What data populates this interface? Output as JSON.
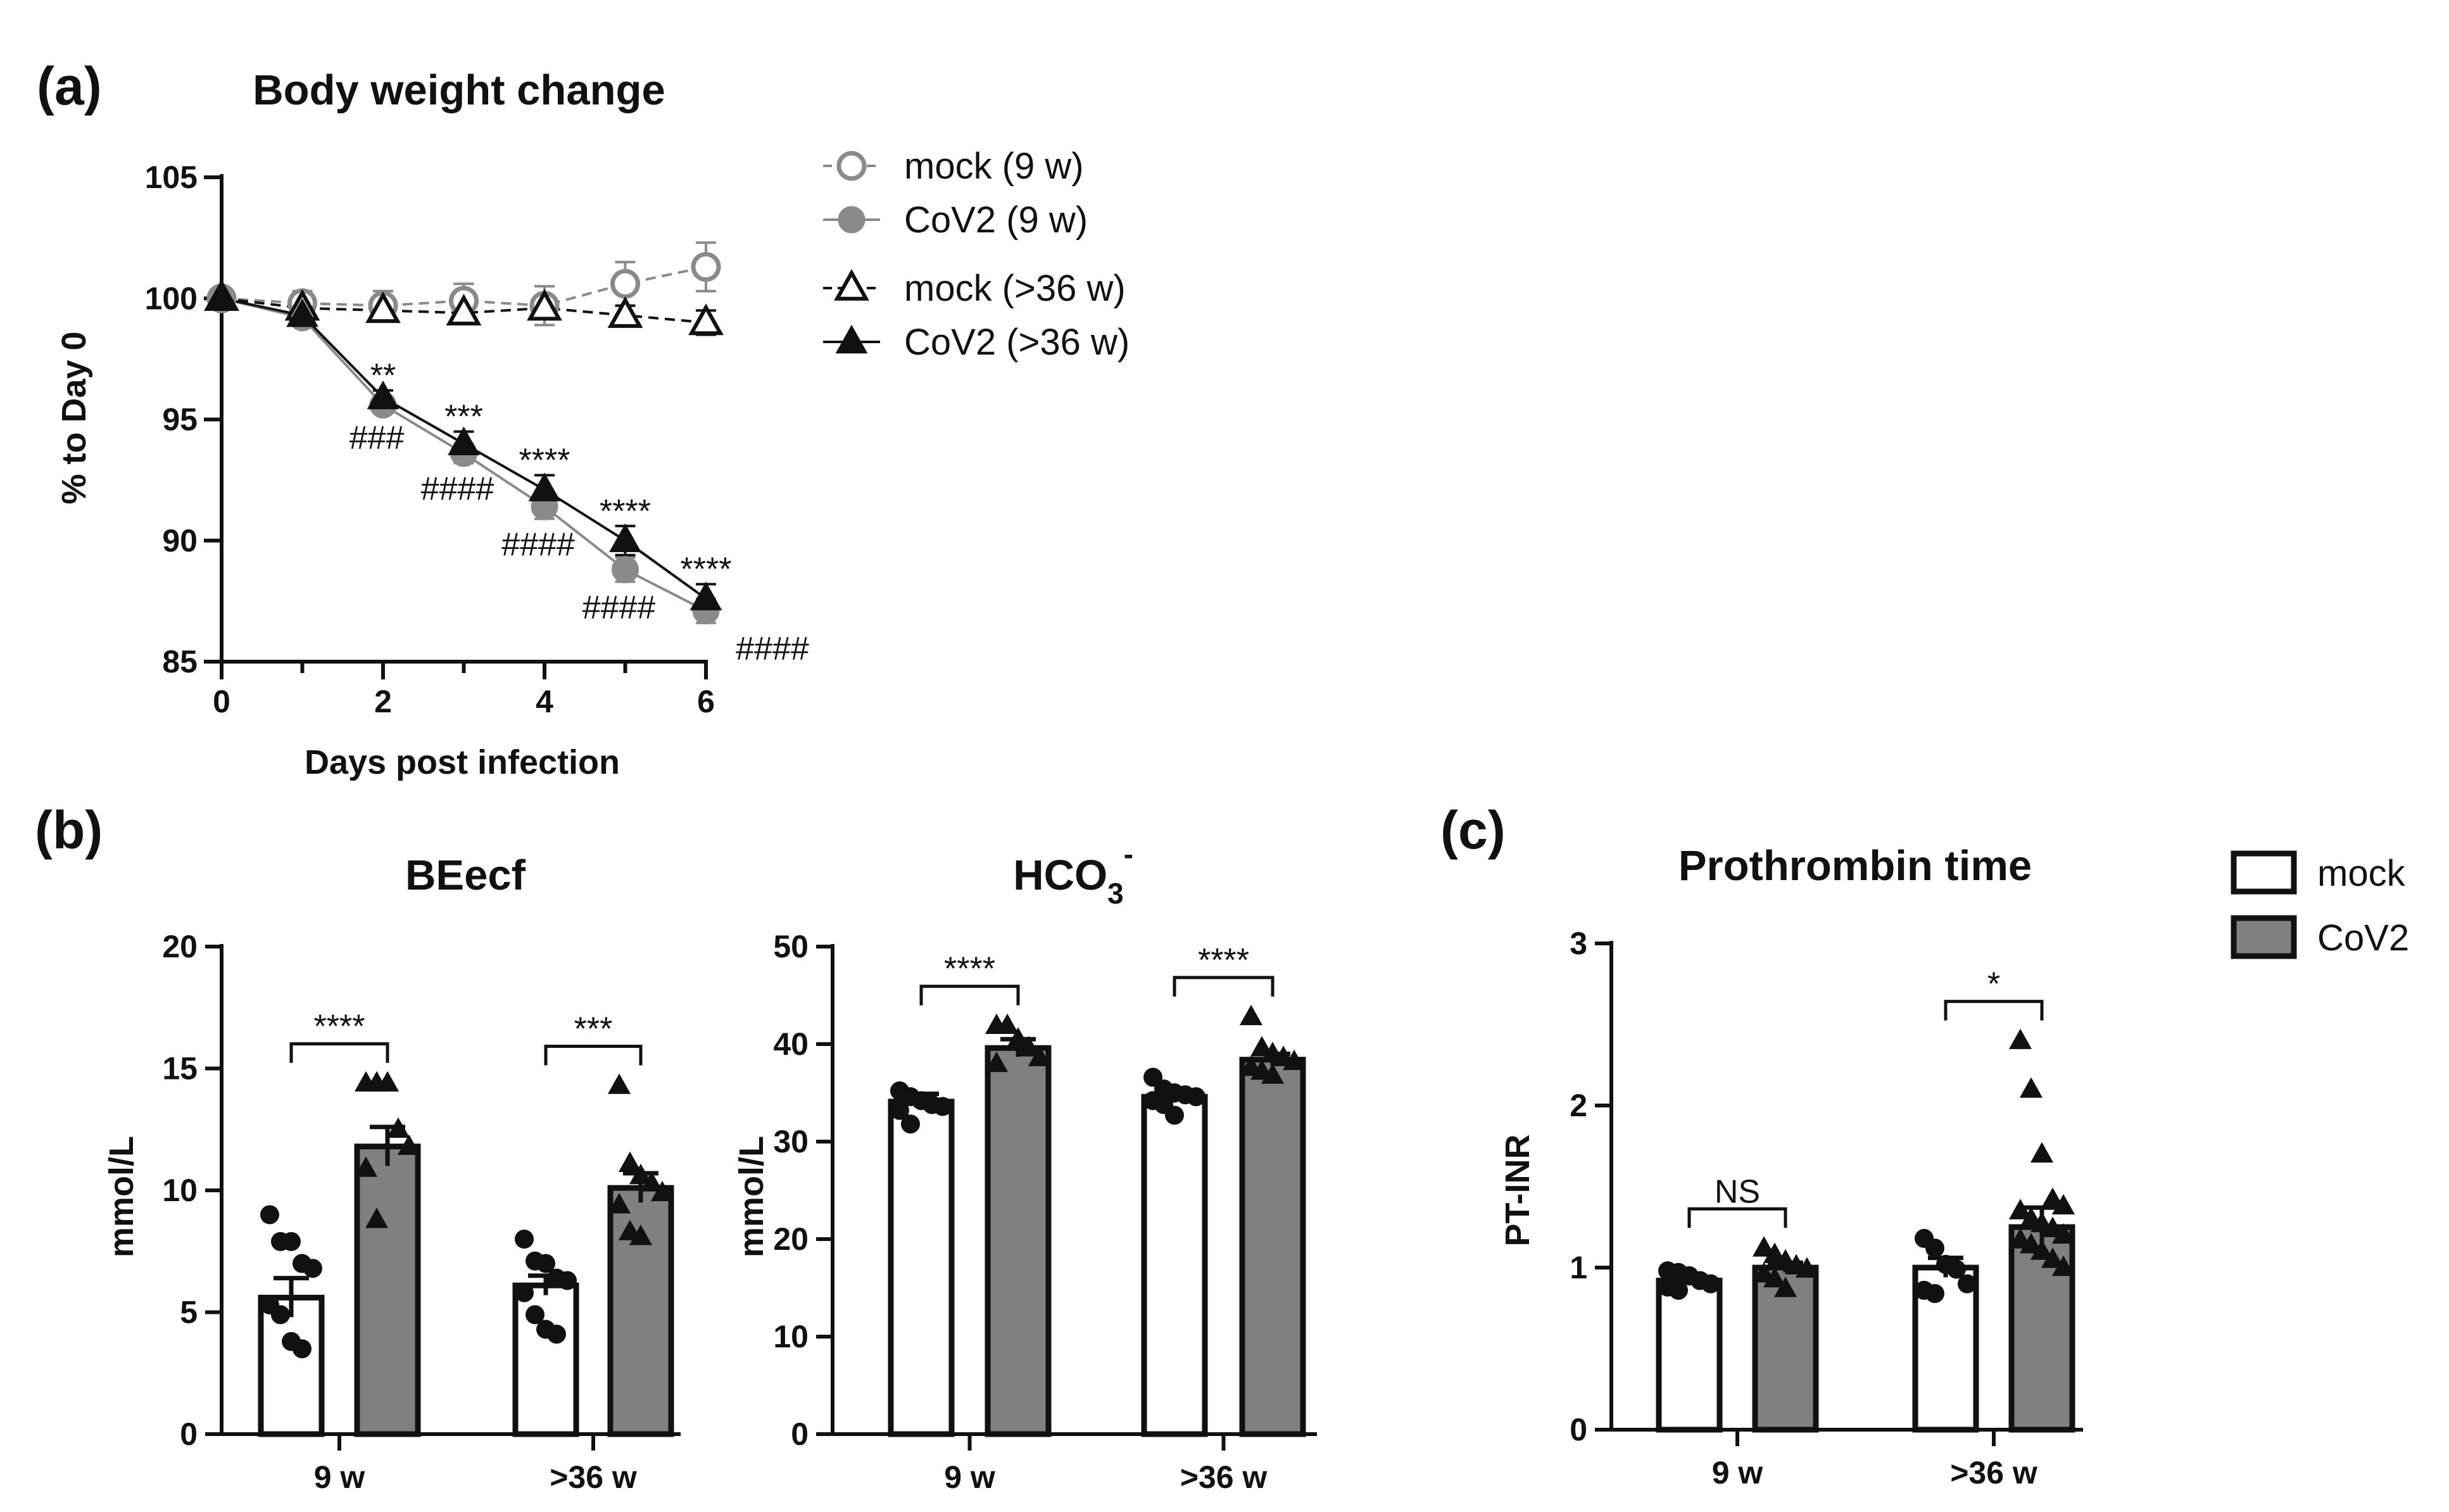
{
  "chart_data": [
    {
      "panel": "(a)",
      "type": "line",
      "title": "Body weight change",
      "xlabel": "Days post infection",
      "ylabel": "% to Day 0",
      "xlim": [
        0,
        6
      ],
      "ylim": [
        85,
        105
      ],
      "xticks": [
        0,
        2,
        4,
        6
      ],
      "yticks": [
        85,
        90,
        95,
        100,
        105
      ],
      "x": [
        0,
        1,
        2,
        3,
        4,
        5,
        6
      ],
      "series": [
        {
          "name": "mock (9 w)",
          "marker": "circle-open",
          "color": "#8a8a8a",
          "dashed": true,
          "values": [
            100,
            99.8,
            99.7,
            99.9,
            99.7,
            100.6,
            101.3
          ],
          "err": [
            0.2,
            0.5,
            0.6,
            0.7,
            0.8,
            0.9,
            1.0
          ]
        },
        {
          "name": "CoV2 (9 w)",
          "marker": "circle-filled",
          "color": "#8a8a8a",
          "dashed": false,
          "values": [
            100,
            99.2,
            95.6,
            93.6,
            91.4,
            88.8,
            87.1
          ],
          "err": [
            0.2,
            0.3,
            0.3,
            0.4,
            0.5,
            0.5,
            0.5
          ]
        },
        {
          "name": "mock (>36 w)",
          "marker": "triangle-open",
          "color": "#111111",
          "dashed": true,
          "values": [
            100,
            99.6,
            99.5,
            99.4,
            99.6,
            99.3,
            99.0
          ],
          "err": [
            0.2,
            0.3,
            0.3,
            0.3,
            0.3,
            0.4,
            0.5
          ]
        },
        {
          "name": "CoV2 (>36 w)",
          "marker": "triangle-filled",
          "color": "#111111",
          "dashed": false,
          "values": [
            100,
            99.3,
            95.9,
            94.0,
            92.1,
            90.0,
            87.6
          ],
          "err": [
            0.2,
            0.3,
            0.3,
            0.5,
            0.6,
            0.6,
            0.6
          ]
        }
      ],
      "annotations": [
        {
          "x": 2,
          "upper": "**",
          "lower": "###"
        },
        {
          "x": 3,
          "upper": "***",
          "lower": "####"
        },
        {
          "x": 4,
          "upper": "****",
          "lower": "####"
        },
        {
          "x": 5,
          "upper": "****",
          "lower": "####"
        },
        {
          "x": 6,
          "upper": "****",
          "lower": "####"
        }
      ]
    },
    {
      "panel": "(b)",
      "type": "bar",
      "title": "BEecf",
      "ylabel": "mmol/L",
      "categories": [
        "9 w",
        ">36 w"
      ],
      "ylim": [
        0,
        20
      ],
      "yticks": [
        0,
        5,
        10,
        15,
        20
      ],
      "series": [
        {
          "name": "mock",
          "values": [
            5.6,
            6.1
          ],
          "err": [
            0.8,
            0.4
          ],
          "points": [
            [
              9.0,
              7.9,
              7.9,
              7.0,
              6.8,
              5.3,
              4.9,
              3.8,
              3.5
            ],
            [
              8.0,
              7.1,
              7.0,
              6.4,
              6.3,
              5.8,
              4.9,
              4.3,
              4.1
            ]
          ]
        },
        {
          "name": "CoV2",
          "values": [
            11.8,
            10.1
          ],
          "err": [
            0.8,
            0.6
          ],
          "points": [
            [
              14.4,
              14.4,
              14.4,
              12.5,
              11.8,
              10.9,
              8.8
            ],
            [
              14.3,
              11.1,
              10.6,
              10.3,
              9.9,
              9.4,
              8.3,
              8.1
            ]
          ]
        }
      ],
      "significance": [
        "****",
        "***"
      ]
    },
    {
      "type": "bar",
      "title": "HCO3-",
      "title_main": "HCO",
      "title_sub": "3",
      "title_sup": "-",
      "ylabel": "mmol/L",
      "categories": [
        "9 w",
        ">36 w"
      ],
      "ylim": [
        0,
        50
      ],
      "yticks": [
        0,
        10,
        20,
        30,
        40,
        50
      ],
      "series": [
        {
          "name": "mock",
          "values": [
            34.1,
            34.6
          ],
          "err": [
            0.8,
            0.6
          ],
          "points": [
            [
              35.2,
              34.6,
              34.2,
              33.8,
              33.6,
              33.2,
              31.8
            ],
            [
              36.6,
              35.4,
              35.0,
              34.8,
              34.6,
              34.2,
              33.8,
              32.7
            ]
          ]
        },
        {
          "name": "CoV2",
          "values": [
            39.6,
            38.4
          ],
          "err": [
            0.9,
            0.6
          ],
          "points": [
            [
              41.9,
              41.9,
              40.5,
              39.6,
              38.6,
              38.0
            ],
            [
              42.8,
              39.6,
              39.0,
              38.6,
              38.2,
              37.6,
              37.2,
              36.8
            ]
          ]
        }
      ],
      "significance": [
        "****",
        "****"
      ]
    },
    {
      "panel": "(c)",
      "type": "bar",
      "title": "Prothrombin time",
      "ylabel": "PT-INR",
      "categories": [
        "9 w",
        ">36 w"
      ],
      "ylim": [
        0,
        3
      ],
      "yticks": [
        0,
        1,
        2,
        3
      ],
      "series": [
        {
          "name": "mock",
          "values": [
            0.92,
            1.0
          ],
          "err": [
            0.03,
            0.06
          ],
          "points": [
            [
              0.98,
              0.97,
              0.95,
              0.92,
              0.9,
              0.88,
              0.86
            ],
            [
              1.18,
              1.12,
              1.02,
              0.99,
              0.9,
              0.86,
              0.84
            ]
          ]
        },
        {
          "name": "CoV2",
          "values": [
            1.0,
            1.25
          ],
          "err": [
            0.03,
            0.12
          ],
          "points": [
            [
              1.12,
              1.08,
              1.04,
              1.01,
              0.99,
              0.96,
              0.93,
              0.87
            ],
            [
              2.4,
              2.1,
              1.7,
              1.42,
              1.38,
              1.35,
              1.3,
              1.27,
              1.24,
              1.2,
              1.17,
              1.14,
              1.1,
              1.05,
              1.0
            ]
          ]
        }
      ],
      "significance": [
        "NS",
        "*"
      ],
      "legend": [
        {
          "label": "mock",
          "fill": "#ffffff"
        },
        {
          "label": "CoV2",
          "fill": "#808080"
        }
      ]
    }
  ]
}
